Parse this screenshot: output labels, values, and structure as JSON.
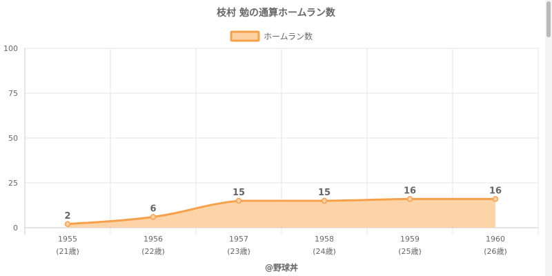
{
  "chart_data": {
    "type": "area",
    "title": "枝村 勉の通算ホームラン数",
    "categories": [
      "1955",
      "1956",
      "1957",
      "1958",
      "1959",
      "1960"
    ],
    "category_sublabels": [
      "(21歳)",
      "(22歳)",
      "(23歳)",
      "(24歳)",
      "(25歳)",
      "(26歳)"
    ],
    "series": [
      {
        "name": "ホームラン数",
        "values": [
          2,
          6,
          15,
          15,
          16,
          16
        ]
      }
    ],
    "ylim": [
      0,
      100
    ],
    "yticks": [
      0,
      25,
      50,
      75,
      100
    ],
    "grid": true,
    "legend": "top-center",
    "colors": {
      "line": "#f7a04a",
      "fill": "#fdd1a2",
      "grid": "#e6e6e6",
      "axis": "#c8c8c8",
      "text": "#666666"
    },
    "credit": "@野球丼"
  }
}
